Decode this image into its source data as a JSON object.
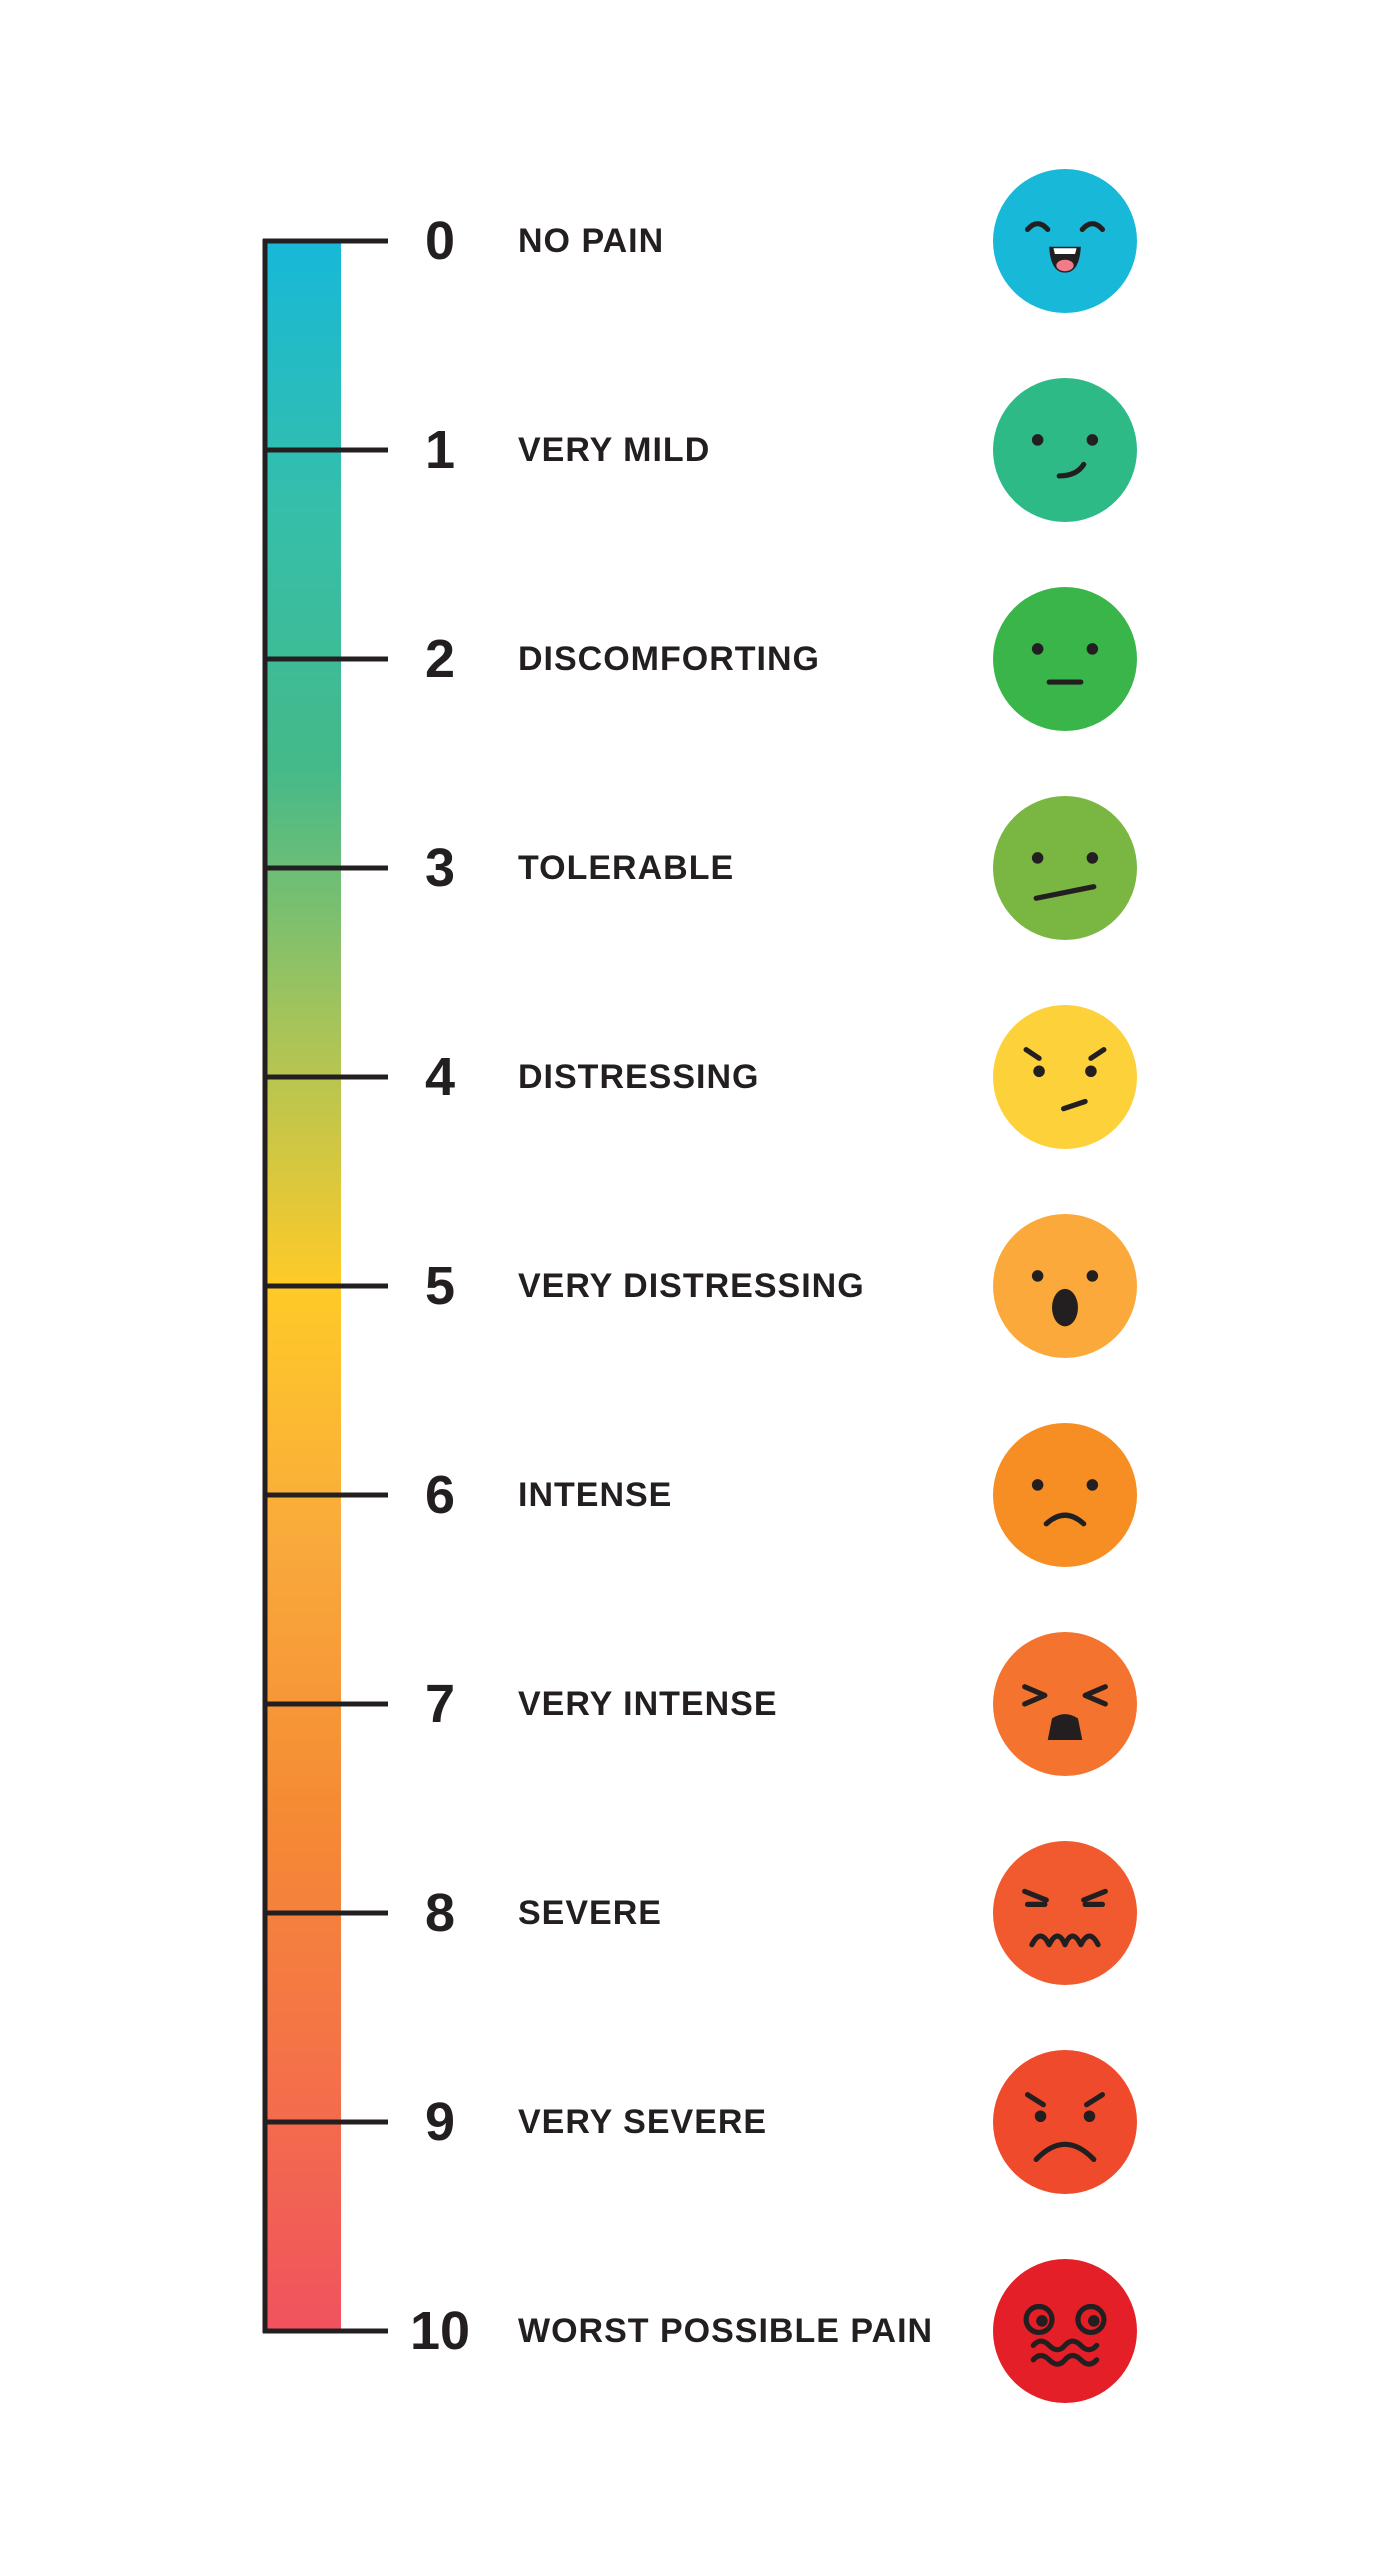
{
  "scale": {
    "gradient_colors": [
      "#17b8d8",
      "#35bfaa",
      "#44b98a",
      "#a6c45a",
      "#ffca28",
      "#f9a93c",
      "#f58b34",
      "#f47149",
      "#f0525e"
    ],
    "line_color": "#231f20"
  },
  "levels": [
    {
      "value": "0",
      "label": "NO PAIN",
      "face_color": "#17b8d8",
      "icon": "laughing-face-icon"
    },
    {
      "value": "1",
      "label": "VERY MILD",
      "face_color": "#2dba87",
      "icon": "smiling-face-icon"
    },
    {
      "value": "2",
      "label": "DISCOMFORTING",
      "face_color": "#3ab54a",
      "icon": "neutral-face-icon"
    },
    {
      "value": "3",
      "label": "TOLERABLE",
      "face_color": "#7ab642",
      "icon": "uneasy-face-icon"
    },
    {
      "value": "4",
      "label": "DISTRESSING",
      "face_color": "#fdd13a",
      "icon": "annoyed-face-icon"
    },
    {
      "value": "5",
      "label": "VERY DISTRESSING",
      "face_color": "#fba93b",
      "icon": "surprised-face-icon"
    },
    {
      "value": "6",
      "label": "INTENSE",
      "face_color": "#f68e23",
      "icon": "sad-face-icon"
    },
    {
      "value": "7",
      "label": "VERY INTENSE",
      "face_color": "#f4732f",
      "icon": "anguished-face-icon"
    },
    {
      "value": "8",
      "label": "SEVERE",
      "face_color": "#f15a2e",
      "icon": "pained-face-icon"
    },
    {
      "value": "9",
      "label": "VERY SEVERE",
      "face_color": "#ef4a2b",
      "icon": "angry-frown-face-icon"
    },
    {
      "value": "10",
      "label": "WORST POSSIBLE PAIN",
      "face_color": "#e41f27",
      "icon": "dizzy-face-icon"
    }
  ]
}
